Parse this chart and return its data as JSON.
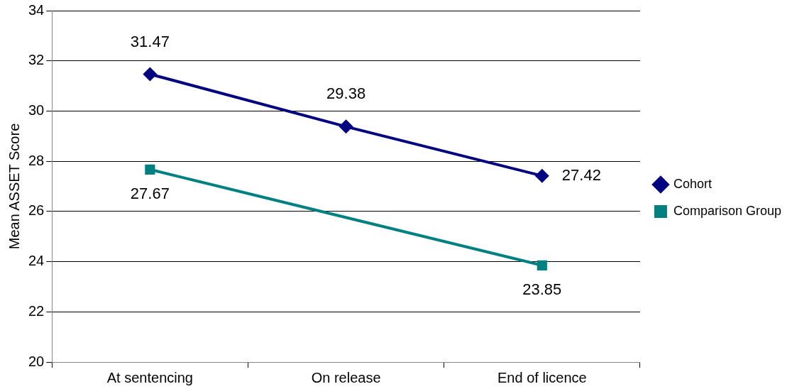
{
  "chart_data": {
    "type": "line",
    "ylabel": "Mean ASSET Score",
    "categories": [
      "At sentencing",
      "On release",
      "End of licence"
    ],
    "series": [
      {
        "name": "Cohort",
        "color": "#000080",
        "values": [
          31.47,
          29.38,
          27.42
        ],
        "marker": "diamond"
      },
      {
        "name": "Comparison Group",
        "color": "#008080",
        "values": [
          27.67,
          null,
          23.85
        ],
        "marker": "square"
      }
    ],
    "ylim": [
      20,
      34
    ],
    "yticks": [
      20,
      22,
      24,
      26,
      28,
      30,
      32,
      34
    ],
    "grid": "y",
    "legend": "right",
    "data_labels": true,
    "line_style": "solid"
  }
}
